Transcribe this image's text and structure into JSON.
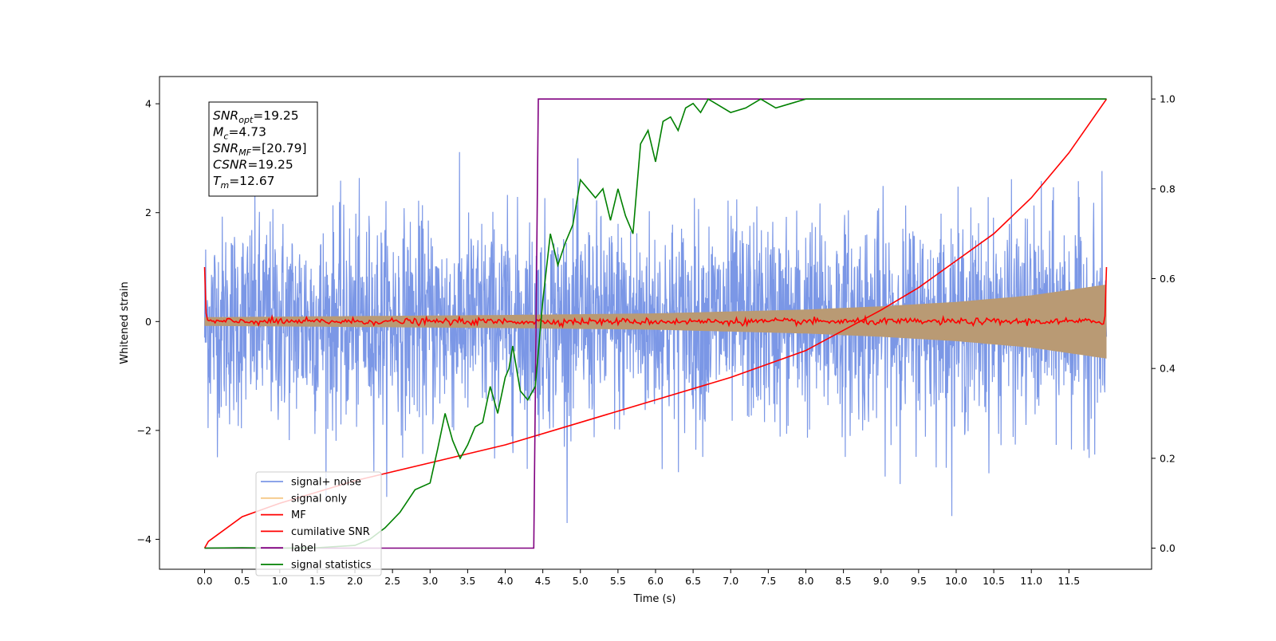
{
  "chart_data": {
    "type": "line",
    "xlabel": "Time (s)",
    "ylabel": "Whitened strain",
    "xlim": [
      -0.6,
      12.6
    ],
    "ylim_left": [
      -4.55,
      4.5
    ],
    "ylim_right": [
      -0.047,
      1.05
    ],
    "x_ticks": [
      "0.0",
      "0.5",
      "1.0",
      "1.5",
      "2.0",
      "2.5",
      "3.0",
      "3.5",
      "4.0",
      "4.5",
      "5.0",
      "5.5",
      "6.0",
      "6.5",
      "7.0",
      "7.5",
      "8.0",
      "8.5",
      "9.0",
      "9.5",
      "10.0",
      "10.5",
      "11.0",
      "11.5"
    ],
    "y_ticks_left": [
      "4",
      "2",
      "0",
      "−2",
      "−4"
    ],
    "y_ticks_right": [
      "1.0",
      "0.8",
      "0.6",
      "0.4",
      "0.2",
      "0.0"
    ],
    "grid": false,
    "legend_position": "lower-left",
    "legend": [
      {
        "label": "signal+ noise",
        "color": "#7b97e6"
      },
      {
        "label": "signal only",
        "color": "#f5c987"
      },
      {
        "label": "MF",
        "color": "#ff0000"
      },
      {
        "label": "cumilative SNR",
        "color": "#ff0000"
      },
      {
        "label": "label",
        "color": "#800080"
      },
      {
        "label": "signal statistics",
        "color": "#008000"
      }
    ],
    "info_box": {
      "snr_opt": {
        "main": "SNR",
        "sub": "opt",
        "value": "=19.25"
      },
      "mc": {
        "main": "M",
        "sub": "c",
        "value": "=4.73"
      },
      "snr_mf": {
        "main": "SNR",
        "sub": "MF",
        "value": "=[20.79]"
      },
      "csnr": {
        "main": "CSNR",
        "sub": "",
        "value": "=19.25"
      },
      "tm": {
        "main": "T",
        "sub": "m",
        "value": "=12.67"
      }
    },
    "series": [
      {
        "name": "signal+ noise",
        "axis": "left",
        "color": "#7b97e6",
        "note": "whitened noise, amplitude ~ ±2.5 (peaks to ~3.8), x from 0 to 12.0",
        "x_range": [
          0.0,
          12.0
        ],
        "amplitude": 2.5
      },
      {
        "name": "signal only",
        "axis": "left",
        "color": "#b99a74",
        "note": "chirp envelope growing from ~0.1 at t=0 to ~0.68 at t=12",
        "envelope_x": [
          0,
          2,
          4,
          6,
          8,
          9,
          10,
          11,
          12
        ],
        "envelope_y": [
          0.08,
          0.1,
          0.12,
          0.15,
          0.22,
          0.28,
          0.36,
          0.48,
          0.68
        ]
      },
      {
        "name": "MF",
        "axis": "left",
        "color": "#ff0000",
        "note": "matched filter output, ~0 with small ripple, spikes to 1.0 at edges",
        "x_range": [
          0.0,
          12.0
        ],
        "start_value": 1.0,
        "end_value": 1.0
      },
      {
        "name": "cumilative SNR",
        "axis": "right",
        "color": "#ff0000",
        "x": [
          0,
          0.05,
          0.5,
          1,
          2,
          3,
          4,
          5,
          6,
          7,
          8,
          9,
          9.5,
          10,
          10.5,
          11,
          11.5,
          12
        ],
        "y": [
          0.0,
          0.015,
          0.07,
          0.1,
          0.15,
          0.19,
          0.23,
          0.28,
          0.33,
          0.38,
          0.44,
          0.53,
          0.58,
          0.64,
          0.7,
          0.78,
          0.88,
          1.0
        ]
      },
      {
        "name": "label",
        "axis": "right",
        "color": "#800080",
        "x": [
          0,
          4.38,
          4.44,
          12
        ],
        "y": [
          0.0,
          0.0,
          1.0,
          1.0
        ]
      },
      {
        "name": "signal statistics",
        "axis": "right",
        "color": "#008000",
        "x": [
          0,
          0.5,
          1,
          1.5,
          2,
          2.2,
          2.4,
          2.6,
          2.8,
          3.0,
          3.1,
          3.2,
          3.3,
          3.4,
          3.5,
          3.6,
          3.7,
          3.8,
          3.9,
          4.0,
          4.05,
          4.1,
          4.2,
          4.3,
          4.4,
          4.5,
          4.6,
          4.7,
          4.8,
          4.9,
          5.0,
          5.1,
          5.2,
          5.3,
          5.4,
          5.5,
          5.6,
          5.7,
          5.8,
          5.9,
          6.0,
          6.1,
          6.2,
          6.3,
          6.4,
          6.5,
          6.6,
          6.7,
          6.8,
          7.0,
          7.2,
          7.4,
          7.6,
          7.8,
          8.0,
          8.5,
          9.0,
          9.5,
          10,
          11,
          12
        ],
        "y": [
          0.0,
          0.001,
          0.0,
          0.001,
          0.006,
          0.02,
          0.045,
          0.08,
          0.13,
          0.145,
          0.22,
          0.3,
          0.24,
          0.2,
          0.23,
          0.27,
          0.28,
          0.36,
          0.3,
          0.38,
          0.4,
          0.45,
          0.35,
          0.33,
          0.36,
          0.55,
          0.7,
          0.63,
          0.68,
          0.72,
          0.82,
          0.8,
          0.78,
          0.8,
          0.73,
          0.8,
          0.74,
          0.7,
          0.9,
          0.93,
          0.86,
          0.95,
          0.96,
          0.93,
          0.98,
          0.99,
          0.97,
          1.0,
          0.99,
          0.97,
          0.98,
          1.0,
          0.98,
          0.99,
          1.0,
          1.0,
          1.0,
          1.0,
          1.0,
          1.0,
          1.0
        ]
      }
    ]
  }
}
